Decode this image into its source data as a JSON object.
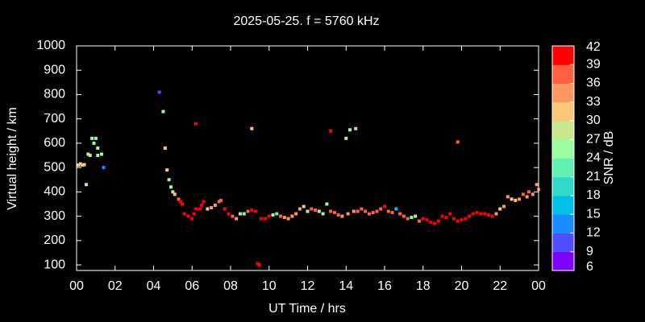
{
  "chart_data": {
    "type": "scatter",
    "title": "2025-05-25. f = 5760 kHz",
    "x_label": "UT Time / hrs",
    "y_label": "Virtual height / km",
    "colorbar_label": "SNR / dB",
    "xlim": [
      0,
      24
    ],
    "xticks": [
      {
        "value": 0,
        "label": "00"
      },
      {
        "value": 2,
        "label": "02"
      },
      {
        "value": 4,
        "label": "04"
      },
      {
        "value": 6,
        "label": "06"
      },
      {
        "value": 8,
        "label": "08"
      },
      10,
      12,
      14,
      16,
      18,
      20,
      22,
      {
        "value": 24,
        "label": "00"
      }
    ],
    "ylim": [
      77,
      1000
    ],
    "yticks": [
      100,
      200,
      300,
      400,
      500,
      600,
      700,
      800,
      900,
      1000
    ],
    "clim": [
      6,
      42
    ],
    "cticks": [
      6,
      9,
      12,
      15,
      18,
      21,
      24,
      27,
      30,
      33,
      36,
      39,
      42
    ],
    "colormap": [
      "#8000ff",
      "#4f4fff",
      "#1a8cff",
      "#00c0e8",
      "#30d8c8",
      "#60f0b0",
      "#98ffa0",
      "#c8e890",
      "#f8c878",
      "#ff9860",
      "#ff6040",
      "#ff0000"
    ],
    "x": [
      0.1,
      0.2,
      0.3,
      0.4,
      0.5,
      0.6,
      0.7,
      0.8,
      0.9,
      1.0,
      1.1,
      1.1,
      1.3,
      1.4,
      4.3,
      4.5,
      4.6,
      4.7,
      4.8,
      4.9,
      5.0,
      5.1,
      5.3,
      5.4,
      5.5,
      5.6,
      5.8,
      6.0,
      6.1,
      6.2,
      6.2,
      6.4,
      6.5,
      6.6,
      6.8,
      7.0,
      7.2,
      7.4,
      7.5,
      7.7,
      7.9,
      8.1,
      8.3,
      8.5,
      8.7,
      8.9,
      9.1,
      9.1,
      9.3,
      9.4,
      9.5,
      9.6,
      9.8,
      10.0,
      10.2,
      10.4,
      10.6,
      10.8,
      11.0,
      11.2,
      11.4,
      11.6,
      11.8,
      12.0,
      12.2,
      12.4,
      12.6,
      12.8,
      13.0,
      13.2,
      13.2,
      13.4,
      13.6,
      13.8,
      14.0,
      14.1,
      14.2,
      14.4,
      14.5,
      14.6,
      14.8,
      15.0,
      15.2,
      15.4,
      15.6,
      15.8,
      16.0,
      16.2,
      16.4,
      16.6,
      16.8,
      17.0,
      17.2,
      17.4,
      17.6,
      17.8,
      18.0,
      18.2,
      18.4,
      18.6,
      18.8,
      19.0,
      19.2,
      19.4,
      19.6,
      19.8,
      19.8,
      20.0,
      20.2,
      20.4,
      20.6,
      20.8,
      21.0,
      21.2,
      21.4,
      21.6,
      21.8,
      22.0,
      22.2,
      22.4,
      22.6,
      22.8,
      23.0,
      23.2,
      23.4,
      23.5,
      23.7,
      23.9,
      24.0
    ],
    "values": [
      510,
      515,
      510,
      512,
      430,
      555,
      550,
      620,
      600,
      620,
      550,
      580,
      555,
      500,
      810,
      730,
      580,
      490,
      450,
      420,
      400,
      390,
      370,
      360,
      350,
      310,
      300,
      290,
      310,
      330,
      680,
      330,
      345,
      360,
      330,
      335,
      345,
      360,
      365,
      330,
      310,
      300,
      290,
      310,
      310,
      320,
      325,
      660,
      320,
      105,
      100,
      290,
      290,
      300,
      305,
      310,
      300,
      295,
      290,
      300,
      310,
      330,
      340,
      320,
      330,
      325,
      320,
      310,
      350,
      320,
      650,
      315,
      305,
      300,
      620,
      310,
      655,
      320,
      660,
      320,
      330,
      320,
      310,
      315,
      320,
      330,
      340,
      320,
      315,
      330,
      310,
      300,
      290,
      295,
      300,
      280,
      290,
      285,
      275,
      270,
      280,
      300,
      295,
      310,
      290,
      605,
      280,
      285,
      290,
      300,
      310,
      315,
      310,
      310,
      305,
      300,
      310,
      330,
      340,
      380,
      370,
      365,
      370,
      390,
      380,
      400,
      390,
      430,
      410
    ],
    "snr": [
      30,
      30,
      30,
      30,
      27,
      27,
      27,
      24,
      24,
      24,
      24,
      24,
      24,
      12,
      9,
      24,
      30,
      30,
      27,
      24,
      27,
      30,
      36,
      39,
      39,
      39,
      39,
      39,
      39,
      39,
      39,
      39,
      39,
      39,
      30,
      33,
      33,
      36,
      36,
      39,
      39,
      36,
      33,
      27,
      24,
      36,
      39,
      30,
      39,
      39,
      39,
      39,
      39,
      39,
      24,
      21,
      36,
      33,
      33,
      33,
      33,
      33,
      30,
      27,
      36,
      36,
      27,
      24,
      24,
      36,
      39,
      36,
      36,
      33,
      27,
      33,
      24,
      33,
      30,
      36,
      36,
      36,
      36,
      36,
      36,
      36,
      39,
      36,
      36,
      15,
      36,
      36,
      36,
      24,
      27,
      36,
      39,
      39,
      39,
      39,
      39,
      39,
      39,
      39,
      39,
      36,
      39,
      39,
      39,
      39,
      39,
      39,
      39,
      39,
      39,
      39,
      33,
      30,
      33,
      33,
      30,
      30,
      33,
      36,
      33,
      36,
      33,
      33,
      36
    ]
  }
}
